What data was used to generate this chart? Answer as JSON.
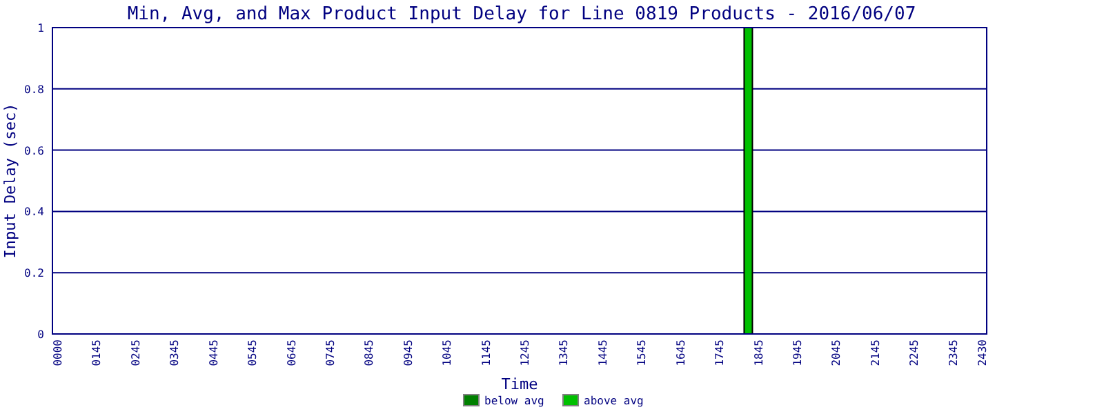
{
  "chart_data": {
    "type": "bar",
    "stacked": true,
    "title": "Min, Avg, and Max Product Input Delay for Line 0819 Products - 2016/06/07",
    "xlabel": "Time",
    "ylabel": "Input Delay (sec)",
    "categories": [
      "0000",
      null,
      null,
      null,
      "0145",
      null,
      null,
      null,
      "0245",
      null,
      null,
      null,
      "0345",
      null,
      null,
      null,
      "0445",
      null,
      null,
      null,
      "0545",
      null,
      null,
      null,
      "0645",
      null,
      null,
      null,
      "0745",
      null,
      null,
      null,
      "0845",
      null,
      null,
      null,
      "0945",
      null,
      null,
      null,
      "1045",
      null,
      null,
      null,
      "1145",
      null,
      null,
      null,
      "1245",
      null,
      null,
      null,
      "1345",
      null,
      null,
      null,
      "1445",
      null,
      null,
      null,
      "1545",
      null,
      null,
      null,
      "1645",
      null,
      null,
      null,
      "1745",
      null,
      null,
      null,
      "1845",
      null,
      null,
      null,
      "1945",
      null,
      null,
      null,
      "2045",
      null,
      null,
      null,
      "2145",
      null,
      null,
      null,
      "2245",
      null,
      null,
      null,
      "2345",
      null,
      null,
      "2430"
    ],
    "series": [
      {
        "name": "below avg",
        "color": "#008000",
        "values": [
          null,
          null,
          null,
          null,
          null,
          null,
          null,
          null,
          null,
          null,
          null,
          null,
          null,
          null,
          null,
          null,
          null,
          null,
          null,
          null,
          null,
          null,
          null,
          null,
          null,
          null,
          null,
          null,
          null,
          null,
          null,
          null,
          null,
          null,
          null,
          null,
          null,
          null,
          null,
          null,
          null,
          null,
          null,
          null,
          null,
          null,
          null,
          null,
          null,
          null,
          null,
          null,
          null,
          null,
          null,
          null,
          null,
          null,
          null,
          null,
          null,
          null,
          null,
          null,
          null,
          null,
          null,
          null,
          null,
          null,
          null,
          0,
          null,
          null,
          null,
          null,
          null,
          null,
          null,
          null,
          null,
          null,
          null,
          null,
          null,
          null,
          null,
          null,
          null,
          null,
          null,
          null,
          null,
          null,
          null,
          null
        ]
      },
      {
        "name": "above avg",
        "color": "#00c000",
        "values": [
          null,
          null,
          null,
          null,
          null,
          null,
          null,
          null,
          null,
          null,
          null,
          null,
          null,
          null,
          null,
          null,
          null,
          null,
          null,
          null,
          null,
          null,
          null,
          null,
          null,
          null,
          null,
          null,
          null,
          null,
          null,
          null,
          null,
          null,
          null,
          null,
          null,
          null,
          null,
          null,
          null,
          null,
          null,
          null,
          null,
          null,
          null,
          null,
          null,
          null,
          null,
          null,
          null,
          null,
          null,
          null,
          null,
          null,
          null,
          null,
          null,
          null,
          null,
          null,
          null,
          null,
          null,
          null,
          null,
          null,
          null,
          1,
          null,
          null,
          null,
          null,
          null,
          null,
          null,
          null,
          null,
          null,
          null,
          null,
          null,
          null,
          null,
          null,
          null,
          null,
          null,
          null,
          null,
          null,
          null,
          null
        ]
      }
    ],
    "ylim": [
      0,
      1
    ],
    "yticks": [
      0,
      0.2,
      0.4,
      0.6,
      0.8,
      1
    ],
    "grid": "y",
    "legend": "bottom"
  }
}
